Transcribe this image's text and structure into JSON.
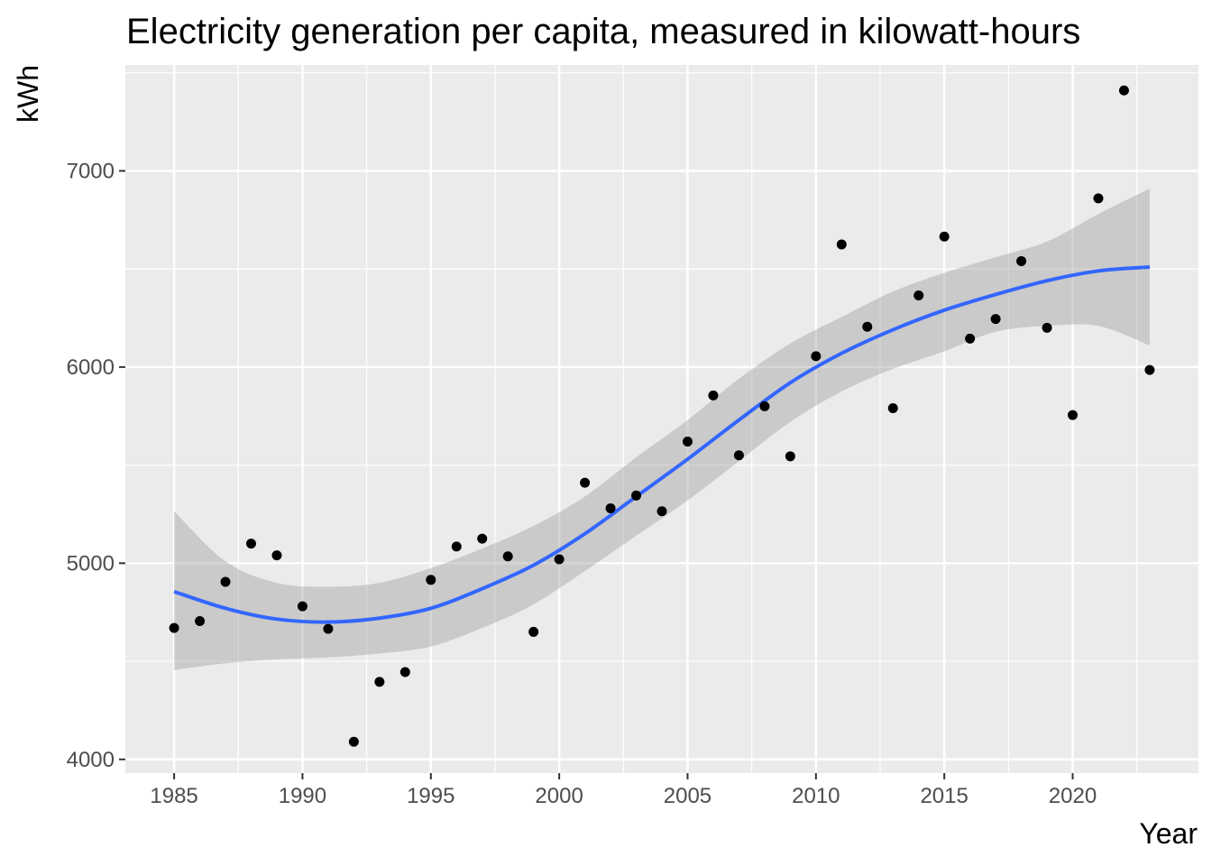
{
  "chart_data": {
    "type": "scatter",
    "title": "Electricity generation per capita, measured in kilowatt-hours",
    "xlabel": "Year",
    "ylabel": "kWh",
    "xlim": [
      1983.1,
      2024.9
    ],
    "ylim": [
      3930,
      7540
    ],
    "x_ticks": [
      1985,
      1990,
      1995,
      2000,
      2005,
      2010,
      2015,
      2020
    ],
    "y_ticks": [
      4000,
      5000,
      6000,
      7000
    ],
    "grid": true,
    "legend": "none",
    "colors": {
      "panel": "#ebebeb",
      "grid": "#ffffff",
      "point": "#000000",
      "smooth_line": "#3366ff",
      "ribbon": "#999999"
    },
    "points": [
      {
        "x": 1985,
        "y": 4670
      },
      {
        "x": 1986,
        "y": 4705
      },
      {
        "x": 1987,
        "y": 4905
      },
      {
        "x": 1988,
        "y": 5100
      },
      {
        "x": 1989,
        "y": 5040
      },
      {
        "x": 1990,
        "y": 4780
      },
      {
        "x": 1991,
        "y": 4665
      },
      {
        "x": 1992,
        "y": 4090
      },
      {
        "x": 1993,
        "y": 4395
      },
      {
        "x": 1994,
        "y": 4445
      },
      {
        "x": 1995,
        "y": 4915
      },
      {
        "x": 1996,
        "y": 5085
      },
      {
        "x": 1997,
        "y": 5125
      },
      {
        "x": 1998,
        "y": 5035
      },
      {
        "x": 1999,
        "y": 4650
      },
      {
        "x": 2000,
        "y": 5020
      },
      {
        "x": 2001,
        "y": 5410
      },
      {
        "x": 2002,
        "y": 5280
      },
      {
        "x": 2003,
        "y": 5345
      },
      {
        "x": 2004,
        "y": 5265
      },
      {
        "x": 2005,
        "y": 5620
      },
      {
        "x": 2006,
        "y": 5855
      },
      {
        "x": 2007,
        "y": 5550
      },
      {
        "x": 2008,
        "y": 5800
      },
      {
        "x": 2009,
        "y": 5545
      },
      {
        "x": 2010,
        "y": 6055
      },
      {
        "x": 2011,
        "y": 6625
      },
      {
        "x": 2012,
        "y": 6205
      },
      {
        "x": 2013,
        "y": 5790
      },
      {
        "x": 2014,
        "y": 6365
      },
      {
        "x": 2015,
        "y": 6665
      },
      {
        "x": 2016,
        "y": 6145
      },
      {
        "x": 2017,
        "y": 6245
      },
      {
        "x": 2018,
        "y": 6540
      },
      {
        "x": 2019,
        "y": 6200
      },
      {
        "x": 2020,
        "y": 5755
      },
      {
        "x": 2021,
        "y": 6860
      },
      {
        "x": 2022,
        "y": 7410
      },
      {
        "x": 2023,
        "y": 5985
      }
    ],
    "smooth": [
      {
        "x": 1985,
        "y": 4855,
        "lo": 4455,
        "hi": 5265
      },
      {
        "x": 1987,
        "y": 4770,
        "lo": 4490,
        "hi": 5010
      },
      {
        "x": 1989,
        "y": 4715,
        "lo": 4510,
        "hi": 4900
      },
      {
        "x": 1991,
        "y": 4700,
        "lo": 4520,
        "hi": 4880
      },
      {
        "x": 1993,
        "y": 4720,
        "lo": 4540,
        "hi": 4900
      },
      {
        "x": 1995,
        "y": 4770,
        "lo": 4575,
        "hi": 4975
      },
      {
        "x": 1997,
        "y": 4870,
        "lo": 4670,
        "hi": 5075
      },
      {
        "x": 1999,
        "y": 4990,
        "lo": 4790,
        "hi": 5190
      },
      {
        "x": 2001,
        "y": 5150,
        "lo": 4960,
        "hi": 5340
      },
      {
        "x": 2003,
        "y": 5340,
        "lo": 5140,
        "hi": 5540
      },
      {
        "x": 2005,
        "y": 5530,
        "lo": 5320,
        "hi": 5730
      },
      {
        "x": 2007,
        "y": 5730,
        "lo": 5520,
        "hi": 5940
      },
      {
        "x": 2009,
        "y": 5920,
        "lo": 5720,
        "hi": 6120
      },
      {
        "x": 2011,
        "y": 6070,
        "lo": 5875,
        "hi": 6255
      },
      {
        "x": 2013,
        "y": 6190,
        "lo": 5990,
        "hi": 6385
      },
      {
        "x": 2015,
        "y": 6290,
        "lo": 6080,
        "hi": 6480
      },
      {
        "x": 2017,
        "y": 6370,
        "lo": 6180,
        "hi": 6560
      },
      {
        "x": 2019,
        "y": 6440,
        "lo": 6210,
        "hi": 6640
      },
      {
        "x": 2021,
        "y": 6490,
        "lo": 6210,
        "hi": 6780
      },
      {
        "x": 2023,
        "y": 6510,
        "lo": 6110,
        "hi": 6910
      }
    ]
  }
}
